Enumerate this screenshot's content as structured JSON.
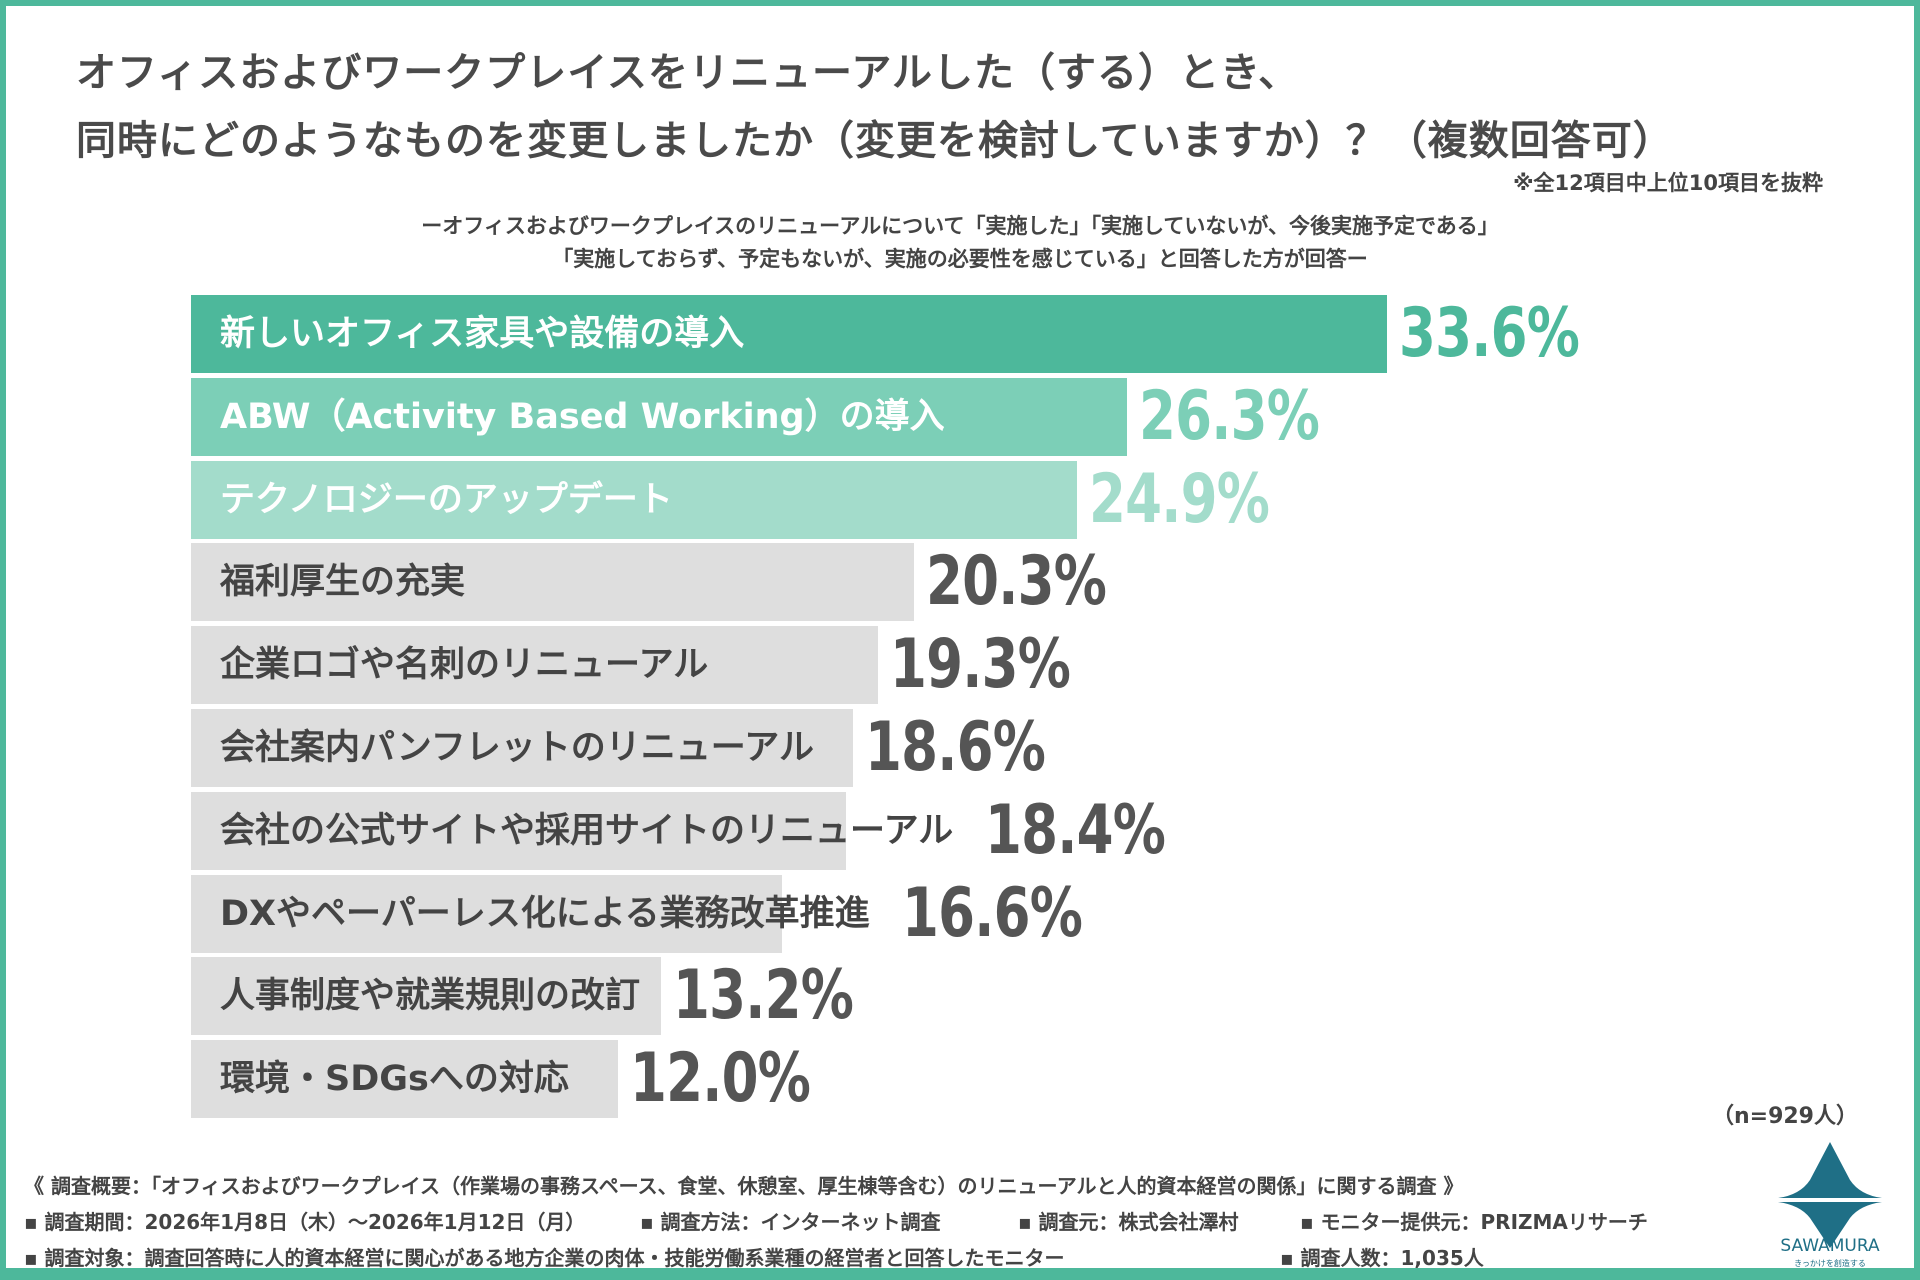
{
  "title_line1": "オフィスおよびワークプレイスをリニューアルした（する）とき、",
  "title_line2": "同時にどのようなものを変更しましたか（変更を検討していますか）？（複数回答可）",
  "note": "※全12項目中上位10項目を抜粋",
  "subtitle_line1": "ーオフィスおよびワークプレイスのリニューアルについて「実施した」「実施していないが、今後実施予定である」",
  "subtitle_line2": "「実施しておらず、予定もないが、実施の必要性を感じている」と回答した方が回答ー",
  "sample": "（n=929人）",
  "chart_data": {
    "type": "bar",
    "orientation": "horizontal",
    "title": "オフィスおよびワークプレイスをリニューアルした（する）とき、同時にどのようなものを変更しましたか（変更を検討していますか）？（複数回答可）",
    "unit": "%",
    "categories": [
      "新しいオフィス家具や設備の導入",
      "ABW（Activity Based Working）の導入",
      "テクノロジーのアップデート",
      "福利厚生の充実",
      "企業ロゴや名刺のリニューアル",
      "会社案内パンフレットのリニューアル",
      "会社の公式サイトや採用サイトのリニューアル",
      "DXやペーパーレス化による業務改革推進",
      "人事制度や就業規則の改訂",
      "環境・SDGsへの対応"
    ],
    "values": [
      33.6,
      26.3,
      24.9,
      20.3,
      19.3,
      18.6,
      18.4,
      16.6,
      13.2,
      12.0
    ],
    "labels": [
      "33.6%",
      "26.3%",
      "24.9%",
      "20.3%",
      "19.3%",
      "18.6%",
      "18.4%",
      "16.6%",
      "13.2%",
      "12.0%"
    ],
    "colors": [
      "#4db89b",
      "#7ccfb7",
      "#a3dccb",
      "#dedede",
      "#dedede",
      "#dedede",
      "#dedede",
      "#dedede",
      "#dedede",
      "#dedede"
    ],
    "value_colors": [
      "#4db89b",
      "#7ccfb7",
      "#a3dccb",
      "#555555",
      "#555555",
      "#555555",
      "#555555",
      "#555555",
      "#555555",
      "#555555"
    ],
    "xlim": [
      0,
      33.6
    ],
    "grid": false
  },
  "footer": {
    "overview": "《 調査概要：「オフィスおよびワークプレイス（作業場の事務スペース、食堂、休憩室、厚生棟等含む）のリニューアルと人的資本経営の関係」に関する調査 》",
    "period": "▪ 調査期間：2026年1月8日（木）～2026年1月12日（月）",
    "method": "▪ 調査方法：インターネット調査",
    "source": "▪ 調査元：株式会社澤村",
    "monitor": "▪ モニター提供元：PRIZMAリサーチ",
    "target": "▪ 調査対象：調査回答時に人的資本経営に関心がある地方企業の肉体・技能労働系業種の経営者と回答したモニター",
    "count": "▪ 調査人数：1,035人"
  },
  "logo": {
    "name": "SAWAMURA",
    "tagline": "きっかけを創造する",
    "color": "#1f6f86"
  }
}
